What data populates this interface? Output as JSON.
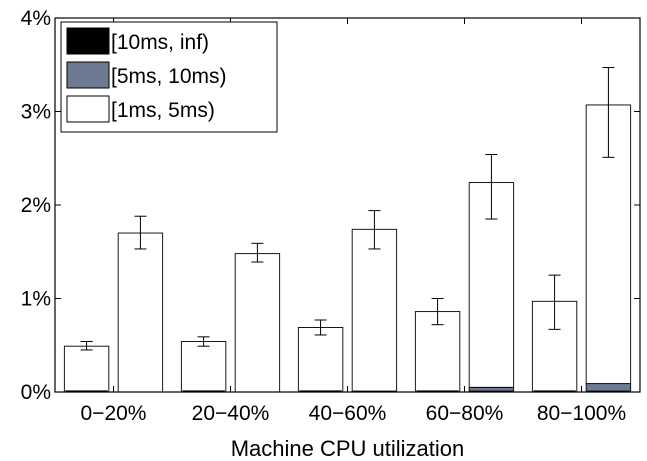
{
  "chart_data": {
    "type": "bar",
    "title": "",
    "xlabel": "Machine CPU utilization",
    "ylabel": "",
    "categories": [
      "0−20%",
      "20−40%",
      "40−60%",
      "60−80%",
      "80−100%"
    ],
    "ylim": [
      0,
      4
    ],
    "yticks": [
      {
        "value": 0,
        "label": "0%"
      },
      {
        "value": 1,
        "label": "1%"
      },
      {
        "value": 2,
        "label": "2%"
      },
      {
        "value": 3,
        "label": "3%"
      },
      {
        "value": 4,
        "label": "4%"
      }
    ],
    "grid": false,
    "legend_position": "top-left",
    "series": [
      {
        "name": "[10ms, inf)",
        "color": "#000000",
        "values": [
          0.0,
          0.0,
          0.0,
          0.01,
          0.01
        ]
      },
      {
        "name": "[5ms, 10ms)",
        "color": "#6e7a91",
        "values": [
          0.0,
          0.0,
          0.01,
          0.04,
          0.08
        ]
      },
      {
        "name": "[1ms, 5ms)",
        "color": "#ffffff",
        "values": [
          1.7,
          1.48,
          1.73,
          2.19,
          2.98
        ]
      }
    ],
    "standalone_bars": [
      {
        "category_index": 0,
        "value": 0.49,
        "err_low": 0.45,
        "err_high": 0.54
      },
      {
        "category_index": 1,
        "value": 0.54,
        "err_low": 0.49,
        "err_high": 0.59
      },
      {
        "category_index": 2,
        "value": 0.69,
        "err_low": 0.61,
        "err_high": 0.77
      },
      {
        "category_index": 3,
        "value": 0.86,
        "err_low": 0.72,
        "err_high": 1.0
      },
      {
        "category_index": 4,
        "value": 0.97,
        "err_low": 0.67,
        "err_high": 1.25
      }
    ],
    "stacked_errorbars": [
      {
        "category_index": 0,
        "err_low": 1.53,
        "err_high": 1.88
      },
      {
        "category_index": 1,
        "err_low": 1.39,
        "err_high": 1.59
      },
      {
        "category_index": 2,
        "err_low": 1.53,
        "err_high": 1.94
      },
      {
        "category_index": 3,
        "err_low": 1.85,
        "err_high": 2.54
      },
      {
        "category_index": 4,
        "err_low": 2.51,
        "err_high": 3.47
      }
    ]
  }
}
